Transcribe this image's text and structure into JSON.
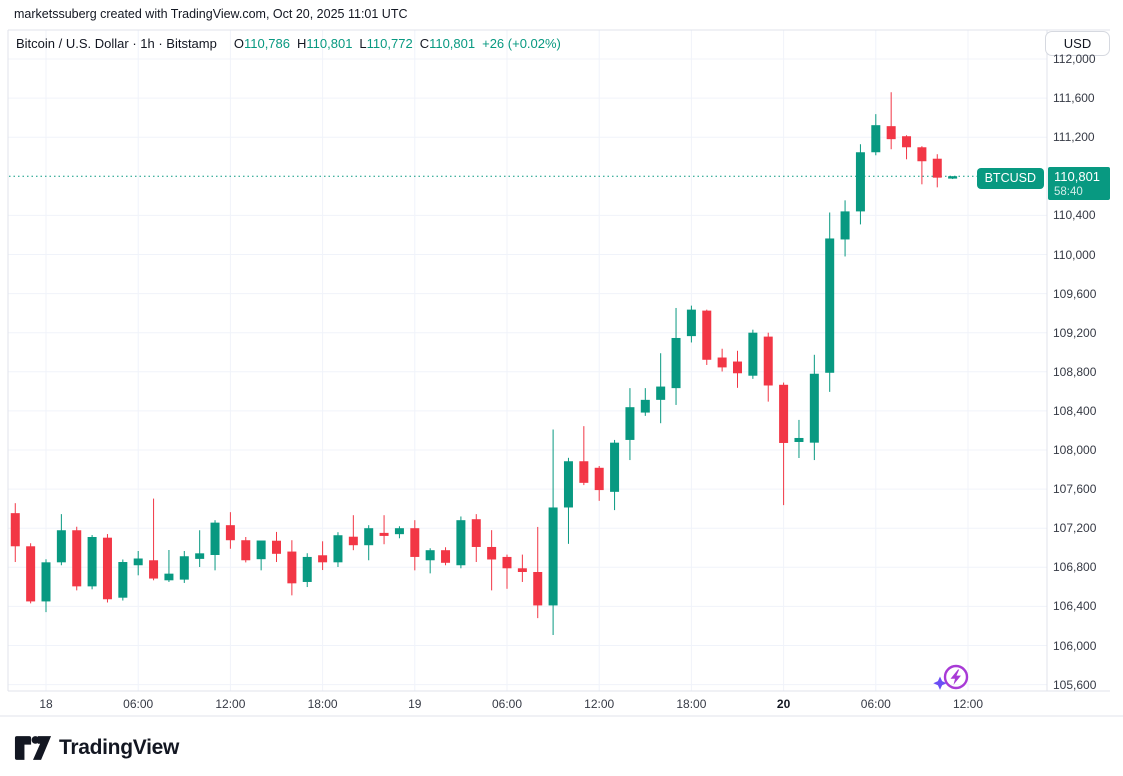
{
  "attribution": "marketssuberg created with TradingView.com, Oct 20, 2025 11:01 UTC",
  "header": {
    "symbol_line": "Bitcoin / U.S. Dollar · 1h · Bitstamp",
    "ohlc": [
      {
        "label": "O",
        "value": "110,786"
      },
      {
        "label": "H",
        "value": "110,801"
      },
      {
        "label": "L",
        "value": "110,772"
      },
      {
        "label": "C",
        "value": "110,801"
      }
    ],
    "change": "+26 (+0.02%)",
    "currency_button": "USD"
  },
  "price_scale": {
    "labels": [
      {
        "text": "112,000",
        "price": 112000
      },
      {
        "text": "111,600",
        "price": 111600
      },
      {
        "text": "111,200",
        "price": 111200
      },
      {
        "text": "110,400",
        "price": 110400
      },
      {
        "text": "110,000",
        "price": 110000
      },
      {
        "text": "109,600",
        "price": 109600
      },
      {
        "text": "109,200",
        "price": 109200
      },
      {
        "text": "108,800",
        "price": 108800
      },
      {
        "text": "108,400",
        "price": 108400
      },
      {
        "text": "108,000",
        "price": 108000
      },
      {
        "text": "107,600",
        "price": 107600
      },
      {
        "text": "107,200",
        "price": 107200
      },
      {
        "text": "106,800",
        "price": 106800
      },
      {
        "text": "106,400",
        "price": 106400
      },
      {
        "text": "106,000",
        "price": 106000
      },
      {
        "text": "105,600",
        "price": 105600
      }
    ],
    "badge": {
      "symbol": "BTCUSD",
      "price": "110,801",
      "countdown": "58:40"
    }
  },
  "time_scale": {
    "labels": [
      {
        "text": "18",
        "index": 2,
        "bold": false
      },
      {
        "text": "06:00",
        "index": 8,
        "bold": false
      },
      {
        "text": "12:00",
        "index": 14,
        "bold": false
      },
      {
        "text": "18:00",
        "index": 20,
        "bold": false
      },
      {
        "text": "19",
        "index": 26,
        "bold": false
      },
      {
        "text": "06:00",
        "index": 32,
        "bold": false
      },
      {
        "text": "12:00",
        "index": 38,
        "bold": false
      },
      {
        "text": "18:00",
        "index": 44,
        "bold": false
      },
      {
        "text": "20",
        "index": 50,
        "bold": true
      },
      {
        "text": "06:00",
        "index": 56,
        "bold": false
      },
      {
        "text": "12:00",
        "index": 62,
        "bold": false
      }
    ]
  },
  "chart_data": {
    "type": "candlestick",
    "title": "Bitcoin / U.S. Dollar",
    "symbol": "BTCUSD",
    "exchange": "Bitstamp",
    "interval": "1h",
    "first_candle_time": "Oct 17 22:00 UTC",
    "last_candle_time": "Oct 20 11:00 UTC",
    "current_price": 110801,
    "price_line": 110801,
    "up_color": "#089981",
    "down_color": "#F23645",
    "ylabel": "USD",
    "y_axis": {
      "min": 105450,
      "max": 112150,
      "tick_step": 400
    },
    "candles_ohlc": [
      [
        107354,
        107456,
        106854,
        107015
      ],
      [
        107015,
        107046,
        106431,
        106451
      ],
      [
        106451,
        106882,
        106341,
        106851
      ],
      [
        106851,
        107344,
        106821,
        107179
      ],
      [
        107179,
        107215,
        106564,
        106605
      ],
      [
        106605,
        107130,
        106575,
        107110
      ],
      [
        107103,
        107140,
        106440,
        106473
      ],
      [
        106489,
        106880,
        106460,
        106854
      ],
      [
        106821,
        106967,
        106718,
        106890
      ],
      [
        106872,
        107503,
        106667,
        106685
      ],
      [
        106667,
        106977,
        106650,
        106735
      ],
      [
        106674,
        106967,
        106640,
        106913
      ],
      [
        106886,
        107179,
        106803,
        106943
      ],
      [
        106926,
        107282,
        106769,
        107257
      ],
      [
        107231,
        107364,
        106990,
        107077
      ],
      [
        107077,
        107110,
        106850,
        106872
      ],
      [
        106883,
        106995,
        106769,
        107074
      ],
      [
        107072,
        107162,
        106854,
        106938
      ],
      [
        106961,
        107077,
        106513,
        106636
      ],
      [
        106650,
        106944,
        106598,
        106906
      ],
      [
        106923,
        107066,
        106772,
        106851
      ],
      [
        106851,
        107159,
        106803,
        107128
      ],
      [
        107113,
        107333,
        106975,
        107026
      ],
      [
        107026,
        107231,
        106872,
        107200
      ],
      [
        107152,
        107333,
        107036,
        107121
      ],
      [
        107139,
        107220,
        107097,
        107200
      ],
      [
        107200,
        107282,
        106769,
        106906
      ],
      [
        106872,
        106995,
        106738,
        106975
      ],
      [
        106975,
        107005,
        106821,
        106846
      ],
      [
        106821,
        107320,
        106790,
        107282
      ],
      [
        107292,
        107344,
        106854,
        107008
      ],
      [
        107008,
        107180,
        106564,
        106880
      ],
      [
        106906,
        106930,
        106580,
        106790
      ],
      [
        106790,
        106930,
        106650,
        106752
      ],
      [
        106752,
        107213,
        106280,
        106410
      ],
      [
        106410,
        108210,
        106108,
        107412
      ],
      [
        107412,
        107920,
        107040,
        107885
      ],
      [
        107885,
        108244,
        107641,
        107664
      ],
      [
        107818,
        107836,
        107480,
        107590
      ],
      [
        107572,
        108103,
        107385,
        108075
      ],
      [
        108103,
        108633,
        107897,
        108438
      ],
      [
        108383,
        108633,
        108349,
        108513
      ],
      [
        108513,
        108990,
        108274,
        108649
      ],
      [
        108633,
        109453,
        108461,
        109146
      ],
      [
        109165,
        109477,
        109100,
        109436
      ],
      [
        109426,
        109436,
        108870,
        108923
      ],
      [
        108946,
        109036,
        108803,
        108845
      ],
      [
        108905,
        109015,
        108636,
        108785
      ],
      [
        108760,
        109231,
        108728,
        109200
      ],
      [
        109160,
        109200,
        108495,
        108660
      ],
      [
        108667,
        108690,
        107436,
        108072
      ],
      [
        108082,
        108308,
        107918,
        108123
      ],
      [
        108075,
        108974,
        107897,
        108780
      ],
      [
        108790,
        110430,
        108595,
        110164
      ],
      [
        110154,
        110554,
        109980,
        110441
      ],
      [
        110441,
        111128,
        110308,
        111046
      ],
      [
        111046,
        111436,
        111015,
        111323
      ],
      [
        111313,
        111660,
        111077,
        111180
      ],
      [
        111210,
        111220,
        110974,
        111097
      ],
      [
        111097,
        111108,
        110718,
        110954
      ],
      [
        110980,
        111026,
        110687,
        110786
      ],
      [
        110786,
        110801,
        110772,
        110801
      ]
    ]
  },
  "branding": {
    "logo_text": "TradingView"
  },
  "icons": {
    "boost": "flash-boost-icon",
    "logo": "tradingview-logo-icon"
  }
}
